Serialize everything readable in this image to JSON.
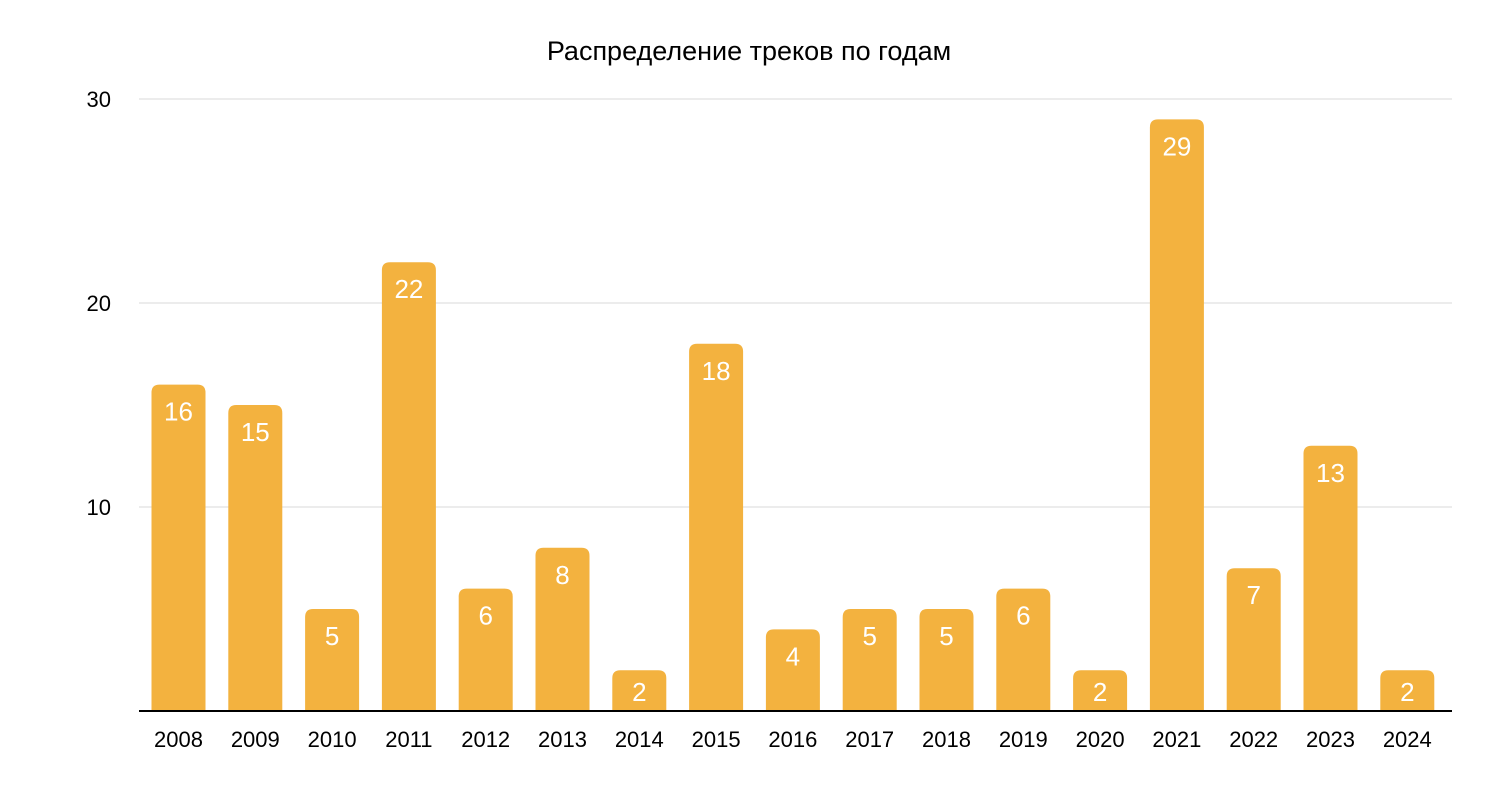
{
  "chart_data": {
    "type": "bar",
    "title": "Распределение треков по годам",
    "xlabel": "",
    "ylabel": "",
    "categories": [
      "2008",
      "2009",
      "2010",
      "2011",
      "2012",
      "2013",
      "2014",
      "2015",
      "2016",
      "2017",
      "2018",
      "2019",
      "2020",
      "2021",
      "2022",
      "2023",
      "2024"
    ],
    "values": [
      16,
      15,
      5,
      22,
      6,
      8,
      2,
      18,
      4,
      5,
      5,
      6,
      2,
      29,
      7,
      13,
      2
    ],
    "ylim": [
      0,
      30
    ],
    "yticks": [
      "10",
      "20",
      "30"
    ],
    "grid": true,
    "legend": "none",
    "data_labels": true,
    "bar_color": "#f3b23f"
  }
}
